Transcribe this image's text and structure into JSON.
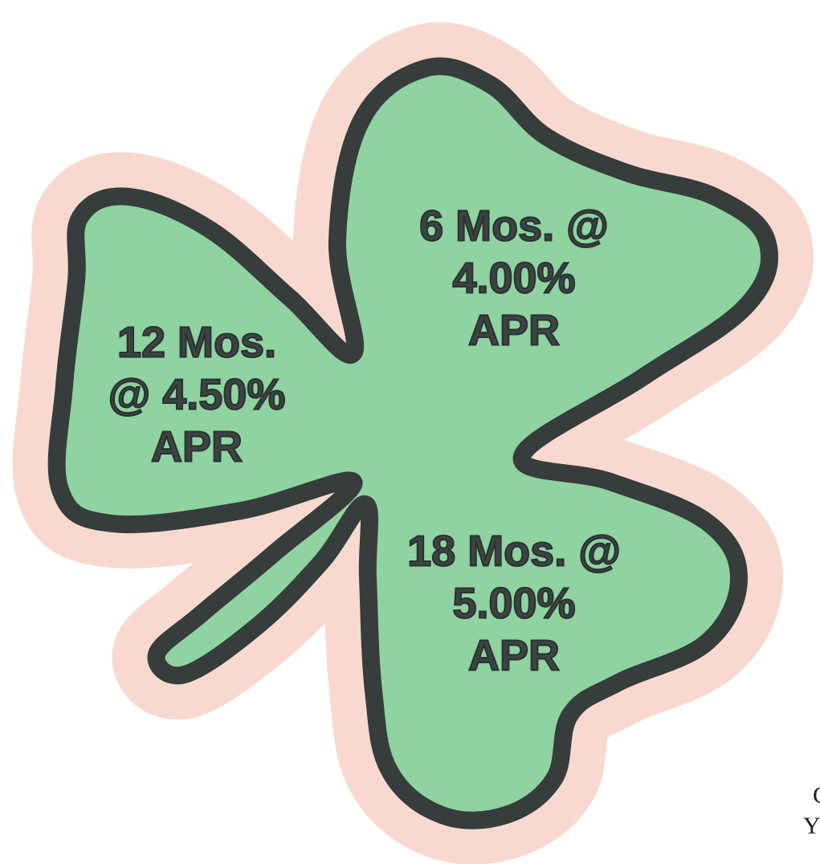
{
  "leaves": [
    {
      "lines": [
        "6 Mos. @",
        "4.00%",
        "APR"
      ]
    },
    {
      "lines": [
        "12 Mos.",
        "@ 4.50%",
        "APR"
      ]
    },
    {
      "lines": [
        "18 Mos. @",
        "5.00%",
        "APR"
      ]
    }
  ],
  "edge_text": [
    "C",
    "Y"
  ]
}
